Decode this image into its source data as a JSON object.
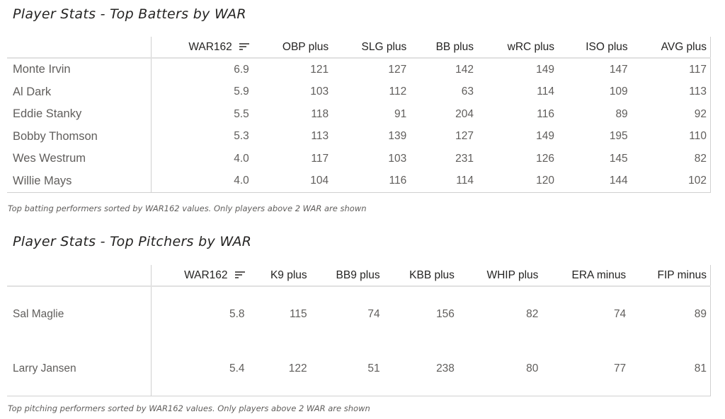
{
  "batters": {
    "title": "Player Stats - Top Batters by WAR",
    "columns": [
      "",
      "WAR162",
      "OBP plus",
      "SLG plus",
      "BB plus",
      "wRC plus",
      "ISO plus",
      "AVG plus"
    ],
    "rows": [
      [
        "Monte Irvin",
        "6.9",
        "121",
        "127",
        "142",
        "149",
        "147",
        "117"
      ],
      [
        "Al Dark",
        "5.9",
        "103",
        "112",
        "63",
        "114",
        "109",
        "113"
      ],
      [
        "Eddie Stanky",
        "5.5",
        "118",
        "91",
        "204",
        "116",
        "89",
        "92"
      ],
      [
        "Bobby Thomson",
        "5.3",
        "113",
        "139",
        "127",
        "149",
        "195",
        "110"
      ],
      [
        "Wes Westrum",
        "4.0",
        "117",
        "103",
        "231",
        "126",
        "145",
        "82"
      ],
      [
        "Willie Mays",
        "4.0",
        "104",
        "116",
        "114",
        "120",
        "144",
        "102"
      ]
    ],
    "caption": "Top batting performers sorted by WAR162 values. Only players above 2 WAR are shown"
  },
  "pitchers": {
    "title": "Player Stats - Top Pitchers by WAR",
    "columns": [
      "",
      "WAR162",
      "K9 plus",
      "BB9 plus",
      "KBB plus",
      "WHIP plus",
      "ERA minus",
      "FIP minus"
    ],
    "rows": [
      [
        "Sal Maglie",
        "5.8",
        "115",
        "74",
        "156",
        "82",
        "74",
        "89"
      ],
      [
        "Larry Jansen",
        "5.4",
        "122",
        "51",
        "238",
        "80",
        "77",
        "81"
      ]
    ],
    "caption": "Top pitching performers sorted by WAR162 values. Only players above 2 WAR are shown"
  },
  "icons": {
    "sort": "sort-descending-icon"
  }
}
